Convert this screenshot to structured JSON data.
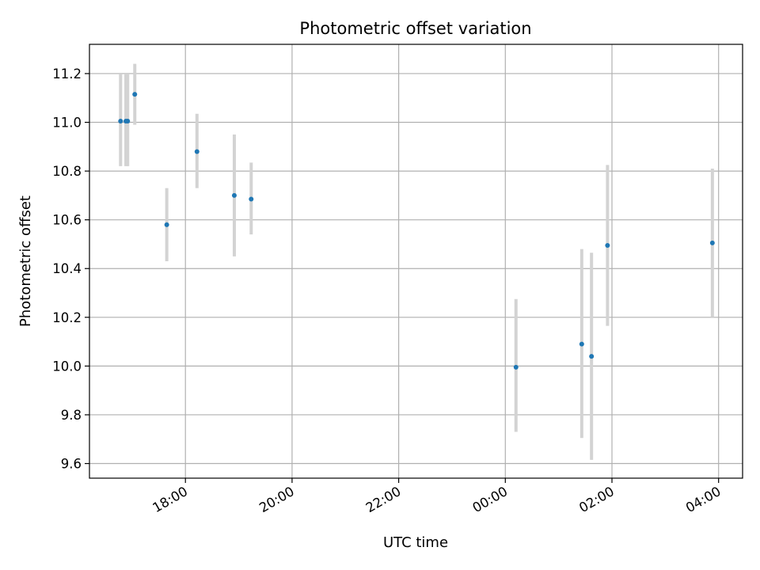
{
  "chart_data": {
    "type": "scatter",
    "title": "Photometric offset variation",
    "xlabel": "UTC time",
    "ylabel": "Photometric offset",
    "x_ticks": [
      "18:00",
      "20:00",
      "22:00",
      "00:00",
      "02:00",
      "04:00"
    ],
    "x_tick_hours": [
      18,
      20,
      22,
      24,
      26,
      28
    ],
    "xlim_hours": [
      16.2,
      28.45
    ],
    "y_ticks": [
      9.6,
      9.8,
      10.0,
      10.2,
      10.4,
      10.6,
      10.8,
      11.0,
      11.2
    ],
    "ylim": [
      9.54,
      11.32
    ],
    "grid": true,
    "colors": {
      "points": "#1f77b4",
      "errorbars": "#d3d3d3",
      "grid": "#b0b0b0"
    },
    "points": [
      {
        "time": "16:47",
        "value": 11.005,
        "low": 10.82,
        "high": 11.2
      },
      {
        "time": "16:53",
        "value": 11.005,
        "low": 10.82,
        "high": 11.2
      },
      {
        "time": "16:55",
        "value": 11.005,
        "low": 10.82,
        "high": 11.2
      },
      {
        "time": "17:03",
        "value": 11.115,
        "low": 10.99,
        "high": 11.24
      },
      {
        "time": "17:39",
        "value": 10.58,
        "low": 10.43,
        "high": 10.73
      },
      {
        "time": "18:13",
        "value": 10.88,
        "low": 10.73,
        "high": 11.035
      },
      {
        "time": "18:55",
        "value": 10.7,
        "low": 10.45,
        "high": 10.95
      },
      {
        "time": "19:14",
        "value": 10.685,
        "low": 10.54,
        "high": 10.835
      },
      {
        "time": "00:12",
        "value": 9.995,
        "low": 9.73,
        "high": 10.275
      },
      {
        "time": "01:26",
        "value": 10.09,
        "low": 9.705,
        "high": 10.48
      },
      {
        "time": "01:37",
        "value": 10.04,
        "low": 9.615,
        "high": 10.465
      },
      {
        "time": "01:55",
        "value": 10.495,
        "low": 10.165,
        "high": 10.825
      },
      {
        "time": "03:53",
        "value": 10.505,
        "low": 10.2,
        "high": 10.81
      }
    ]
  }
}
